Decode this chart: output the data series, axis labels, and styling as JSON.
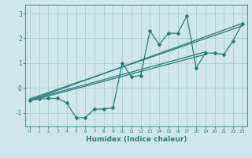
{
  "xlabel": "Humidex (Indice chaleur)",
  "bg_color": "#cfe6ec",
  "grid_color": "#aacdd6",
  "line_color": "#2d7b7b",
  "xlim": [
    -0.5,
    23.5
  ],
  "ylim": [
    -1.55,
    3.35
  ],
  "yticks": [
    -1,
    0,
    1,
    2,
    3
  ],
  "xticks": [
    0,
    1,
    2,
    3,
    4,
    5,
    6,
    7,
    8,
    9,
    10,
    11,
    12,
    13,
    14,
    15,
    16,
    17,
    18,
    19,
    20,
    21,
    22,
    23
  ],
  "series1_x": [
    0,
    1,
    2,
    3,
    4,
    5,
    6,
    7,
    8,
    9,
    10,
    11,
    12,
    13,
    14,
    15,
    16,
    17,
    18,
    19,
    20,
    21,
    22,
    23
  ],
  "series1_y": [
    -0.5,
    -0.45,
    -0.42,
    -0.42,
    -0.6,
    -1.2,
    -1.2,
    -0.85,
    -0.85,
    -0.8,
    1.0,
    0.45,
    0.5,
    2.3,
    1.75,
    2.2,
    2.2,
    2.9,
    0.8,
    1.4,
    1.4,
    1.35,
    1.9,
    2.6
  ],
  "line1_x": [
    0,
    23
  ],
  "line1_y": [
    -0.5,
    2.6
  ],
  "line2_x": [
    0,
    19
  ],
  "line2_y": [
    -0.48,
    1.45
  ],
  "line3_x": [
    0,
    19
  ],
  "line3_y": [
    -0.52,
    1.35
  ],
  "line4_x": [
    0,
    23
  ],
  "line4_y": [
    -0.44,
    2.5
  ]
}
